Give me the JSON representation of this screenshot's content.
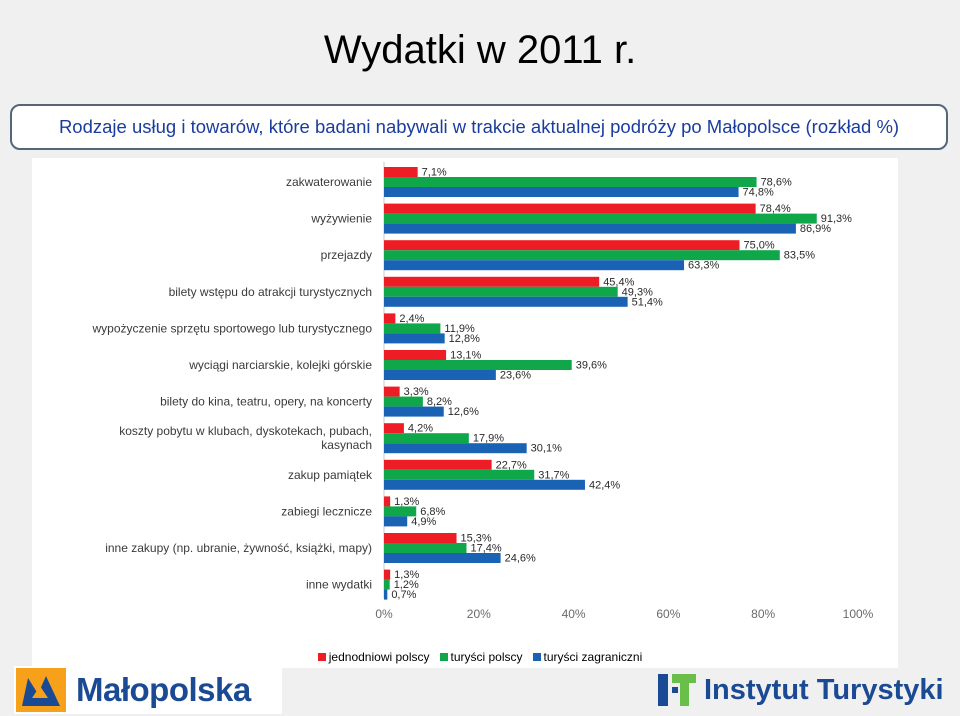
{
  "title": "Wydatki w 2011 r.",
  "subtitle": "Rodzaje usług i towarów, które badani nabywali w trakcie aktualnej podróży po Małopolsce (rozkład %)",
  "logo_left": {
    "icon": "malopolska-logo-icon",
    "text": "Małopolska"
  },
  "logo_right": {
    "icon": "instytut-turystyki-logo-icon",
    "text": "Instytut Turystyki"
  },
  "colors": {
    "s1": "#ee1c24",
    "s2": "#10a64a",
    "s3": "#1a63b4"
  },
  "chart_data": {
    "type": "bar",
    "orientation": "horizontal",
    "title": "",
    "xlabel": "",
    "ylabel": "",
    "xlim": [
      0,
      100
    ],
    "ticks": [
      "0%",
      "20%",
      "40%",
      "60%",
      "80%",
      "100%"
    ],
    "legend_position": "bottom",
    "categories": [
      "zakwaterowanie",
      "wyżywienie",
      "przejazdy",
      "bilety wstępu do atrakcji turystycznych",
      "wypożyczenie sprzętu sportowego lub turystycznego",
      "wyciągi narciarskie, kolejki górskie",
      "bilety do kina, teatru, opery, na koncerty",
      "koszty pobytu w klubach, dyskotekach, pubach, kasynach",
      "zakup pamiątek",
      "zabiegi lecznicze",
      "inne zakupy (np. ubranie, żywność, książki, mapy)",
      "inne wydatki"
    ],
    "category_lines": [
      [
        "zakwaterowanie"
      ],
      [
        "wyżywienie"
      ],
      [
        "przejazdy"
      ],
      [
        "bilety wstępu do atrakcji turystycznych"
      ],
      [
        "wypożyczenie sprzętu sportowego lub turystycznego"
      ],
      [
        "wyciągi narciarskie, kolejki górskie"
      ],
      [
        "bilety do kina, teatru, opery, na koncerty"
      ],
      [
        "koszty pobytu w klubach, dyskotekach, pubach,",
        "kasynach"
      ],
      [
        "zakup pamiątek"
      ],
      [
        "zabiegi lecznicze"
      ],
      [
        "inne zakupy (np. ubranie, żywność, książki, mapy)"
      ],
      [
        "inne wydatki"
      ]
    ],
    "series": [
      {
        "name": "jednodniowi polscy",
        "color": "#ee1c24",
        "values": [
          7.1,
          78.4,
          75.0,
          45.4,
          2.4,
          13.1,
          3.3,
          4.2,
          22.7,
          1.3,
          15.3,
          1.3
        ],
        "labels": [
          "7,1%",
          "78,4%",
          "75,0%",
          "45,4%",
          "2,4%",
          "13,1%",
          "3,3%",
          "4,2%",
          "22,7%",
          "1,3%",
          "15,3%",
          "1,3%"
        ]
      },
      {
        "name": "turyści polscy",
        "color": "#10a64a",
        "values": [
          78.6,
          91.3,
          83.5,
          49.3,
          11.9,
          39.6,
          8.2,
          17.9,
          31.7,
          6.8,
          17.4,
          1.2
        ],
        "labels": [
          "78,6%",
          "91,3%",
          "83,5%",
          "49,3%",
          "11,9%",
          "39,6%",
          "8,2%",
          "17,9%",
          "31,7%",
          "6,8%",
          "17,4%",
          "1,2%"
        ]
      },
      {
        "name": "turyści zagraniczni",
        "color": "#1a63b4",
        "values": [
          74.8,
          86.9,
          63.3,
          51.4,
          12.8,
          23.6,
          12.6,
          30.1,
          42.4,
          4.9,
          24.6,
          0.7
        ],
        "labels": [
          "74,8%",
          "86,9%",
          "63,3%",
          "51,4%",
          "12,8%",
          "23,6%",
          "12,6%",
          "30,1%",
          "42,4%",
          "4,9%",
          "24,6%",
          "0,7%"
        ]
      }
    ]
  }
}
